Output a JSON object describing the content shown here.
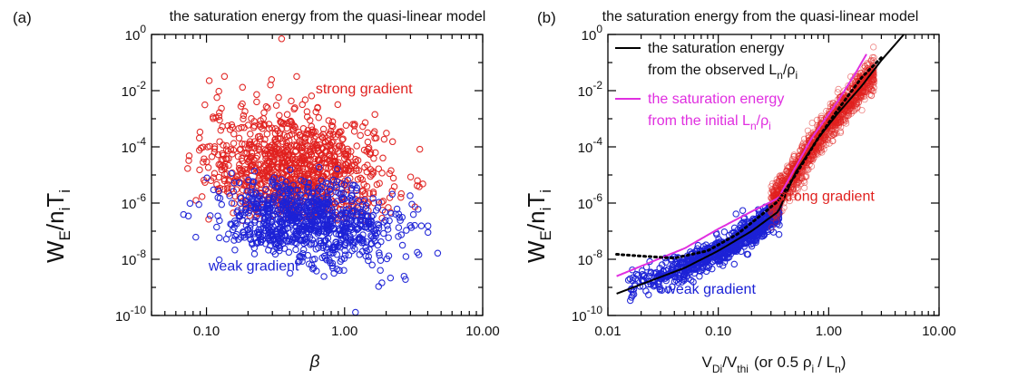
{
  "chart_data": [
    {
      "type": "scatter",
      "panel_label": "(a)",
      "title": "the saturation energy from the quasi-linear model",
      "xlabel": "β",
      "ylabel": {
        "main": "W",
        "sub1": "E",
        "mid": "/n",
        "sub2": "i",
        "tail": "T",
        "sub3": "i"
      },
      "xscale": "log",
      "yscale": "log",
      "xlim": [
        0.04,
        10
      ],
      "ylim": [
        1e-10,
        1
      ],
      "xticks": [
        0.1,
        1,
        10
      ],
      "xticklabels": [
        "0.10",
        "1.00",
        "10.00"
      ],
      "yticks": [
        1e-10,
        1e-08,
        1e-06,
        0.0001,
        0.01,
        1
      ],
      "ytick_base": "10",
      "ytick_exps": [
        "-10",
        "-8",
        "-6",
        "-4",
        "-2",
        "0"
      ],
      "annotations": [
        {
          "text": "strong gradient",
          "color": "#e0211f",
          "x": 3.1,
          "y": 0.008
        },
        {
          "text": "weak gradient",
          "color": "#1c22d6",
          "x": 0.22,
          "y": 4e-09
        }
      ],
      "series": [
        {
          "color": "#e0211f",
          "cloud": {
            "x_center": 0.45,
            "x_spread_dec": 0.33,
            "y_center": 1.5e-05,
            "y_spread_dec": 1.05,
            "x_min": 0.07,
            "x_max": 6.0,
            "y_min": 2e-07,
            "y_max": 0.3,
            "count": 1000
          },
          "extra": [
            {
              "x": 0.35,
              "y": 0.7
            }
          ]
        },
        {
          "color": "#1c22d6",
          "cloud": {
            "x_center": 0.55,
            "x_spread_dec": 0.32,
            "y_center": 2e-07,
            "y_spread_dec": 0.7,
            "x_min": 0.06,
            "x_max": 6.5,
            "y_min": 1e-09,
            "y_max": 3e-05,
            "count": 900
          },
          "extra": [
            {
              "x": 1.2,
              "y": 1.3e-10
            }
          ]
        }
      ]
    },
    {
      "type": "scatter",
      "panel_label": "(b)",
      "title": "the saturation energy from the quasi-linear model",
      "xlabel": {
        "v1": "V",
        "s1": "Di",
        "mid": "/V",
        "s2": "thi",
        "tail": "(or 0.5 ρ",
        "s3": "i",
        "tail2": "/ L",
        "s4": "n",
        "end": ")"
      },
      "ylabel": {
        "main": "W",
        "sub1": "E",
        "mid": "/n",
        "sub2": "i",
        "tail": "T",
        "sub3": "i"
      },
      "xscale": "log",
      "yscale": "log",
      "xlim": [
        0.01,
        10
      ],
      "ylim": [
        1e-10,
        1
      ],
      "xticks": [
        0.01,
        0.1,
        1,
        10
      ],
      "xticklabels": [
        "0.01",
        "0.10",
        "1.00",
        "10.00"
      ],
      "yticks": [
        1e-10,
        1e-08,
        1e-06,
        0.0001,
        0.01,
        1
      ],
      "ytick_base": "10",
      "ytick_exps": [
        "-10",
        "-8",
        "-6",
        "-4",
        "-2",
        "0"
      ],
      "legend": [
        {
          "line1": "the saturation energy",
          "line2": "from the observed L",
          "sub_n": "n",
          "slash": "/ρ",
          "sub_i": "i",
          "color": "#000000"
        },
        {
          "line1": "the saturation energy",
          "line2": "from the initial L",
          "sub_n": "n",
          "slash": "/ρ",
          "sub_i": "i",
          "color": "#e02fe0"
        }
      ],
      "annotations": [
        {
          "text": "strong gradient",
          "color": "#e0211f",
          "x": 2.6,
          "y": 1.2e-06
        },
        {
          "text": "weak gradient",
          "color": "#1c22d6",
          "x": 0.085,
          "y": 6e-10
        }
      ],
      "lines": [
        {
          "name": "observed",
          "color": "#000000",
          "style": "solid",
          "x": [
            0.012,
            0.05,
            0.1,
            0.2,
            0.35,
            0.5,
            0.8,
            1.2,
            2.0,
            3.0,
            4.8
          ],
          "y": [
            6e-10,
            5e-09,
            2e-08,
            1e-07,
            5e-07,
            1.2e-05,
            0.0002,
            0.0015,
            0.015,
            0.12,
            1.0
          ]
        },
        {
          "name": "initial",
          "color": "#e02fe0",
          "style": "solid",
          "x": [
            0.012,
            0.05,
            0.1,
            0.2,
            0.35,
            0.7,
            1.2,
            1.8,
            2.2
          ],
          "y": [
            2.5e-09,
            2.5e-08,
            1.2e-07,
            5e-07,
            1.5e-06,
            0.0002,
            0.004,
            0.05,
            0.2
          ]
        },
        {
          "name": "dotted",
          "color": "#000000",
          "style": "dotted",
          "x": [
            0.012,
            0.02,
            0.04,
            0.08,
            0.15,
            0.25,
            0.35,
            0.5,
            0.8,
            1.2,
            2.0,
            3.0
          ],
          "y": [
            1.5e-08,
            1.3e-08,
            1.1e-08,
            2e-08,
            8e-08,
            4e-07,
            1.2e-06,
            1e-05,
            0.0002,
            0.002,
            0.03,
            0.15
          ]
        }
      ],
      "series": [
        {
          "color": "#1c22d6",
          "band": {
            "x_min": 0.014,
            "x_max": 0.36,
            "log_dens": true,
            "curve_x": [
              0.014,
              0.05,
              0.1,
              0.2,
              0.36
            ],
            "curve_y": [
              9e-10,
              5e-09,
              2e-08,
              1e-07,
              6e-07
            ],
            "y_spread_dec": 0.45,
            "count": 900
          }
        },
        {
          "color": "#e0211f",
          "band": {
            "x_min": 0.3,
            "x_max": 2.6,
            "log_dens": false,
            "curve_x": [
              0.3,
              0.5,
              0.8,
              1.2,
              2.0,
              2.6
            ],
            "curve_y": [
              8e-07,
              1.2e-05,
              0.0002,
              0.0015,
              0.015,
              0.05
            ],
            "y_spread_dec": 0.55,
            "count": 1400
          }
        }
      ]
    }
  ]
}
